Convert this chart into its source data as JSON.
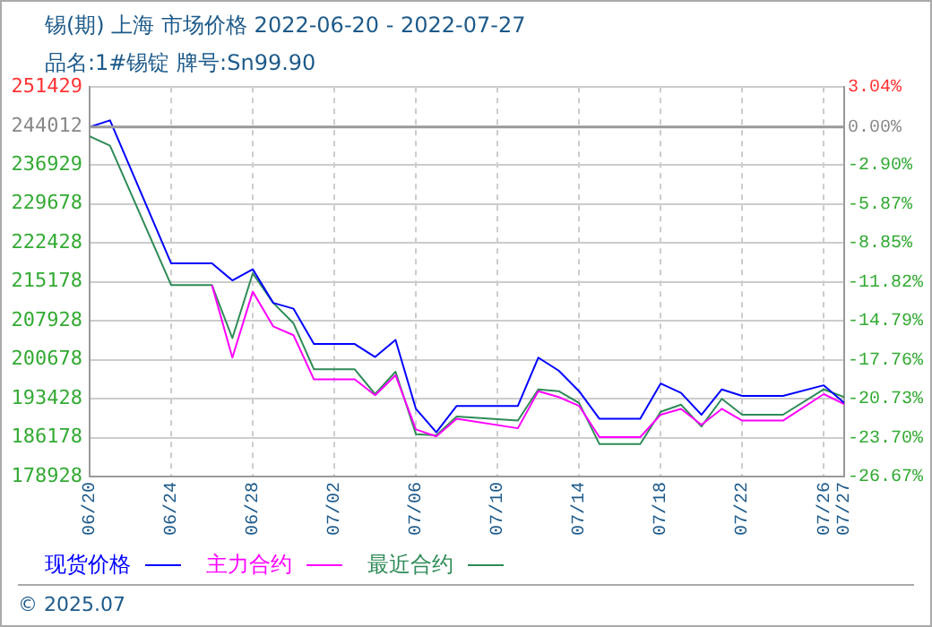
{
  "chart_data": {
    "type": "line",
    "title": "锡(期) 上海 市场价格 2022-06-20 - 2022-07-27",
    "subtitle": "品名:1#锡锭 牌号:Sn99.90",
    "annotations": [
      "© 2025.07"
    ],
    "series": [
      {
        "name": "现货价格",
        "color": "#0000ff",
        "x": [
          "2022-06-20",
          "2022-06-21",
          "2022-06-24",
          "2022-06-26",
          "2022-06-27",
          "2022-06-28",
          "2022-06-29",
          "2022-06-30",
          "2022-07-01",
          "2022-07-03",
          "2022-07-04",
          "2022-07-05",
          "2022-07-06",
          "2022-07-07",
          "2022-07-08",
          "2022-07-11",
          "2022-07-12",
          "2022-07-13",
          "2022-07-14",
          "2022-07-15",
          "2022-07-17",
          "2022-07-18",
          "2022-07-19",
          "2022-07-20",
          "2022-07-21",
          "2022-07-22",
          "2022-07-24",
          "2022-07-26",
          "2022-07-27"
        ],
        "values": [
          244012,
          245230,
          218600,
          218600,
          215430,
          217510,
          211260,
          210170,
          203590,
          203590,
          201180,
          204360,
          191530,
          187150,
          192080,
          192080,
          201060,
          198650,
          194820,
          189670,
          189670,
          196240,
          194490,
          190430,
          195150,
          193940,
          193940,
          195910,
          192630
        ]
      },
      {
        "name": "主力合约",
        "color": "#ff00ff",
        "x": [
          "2022-06-26",
          "2022-06-27",
          "2022-06-28",
          "2022-06-29",
          "2022-06-30",
          "2022-07-01",
          "2022-07-03",
          "2022-07-04",
          "2022-07-05",
          "2022-07-06",
          "2022-07-07",
          "2022-07-08",
          "2022-07-11",
          "2022-07-12",
          "2022-07-13",
          "2022-07-14",
          "2022-07-15",
          "2022-07-17",
          "2022-07-18",
          "2022-07-19",
          "2022-07-20",
          "2022-07-21",
          "2022-07-22",
          "2022-07-24",
          "2022-07-26",
          "2022-07-27"
        ],
        "values": [
          214550,
          201070,
          213340,
          206880,
          205230,
          197010,
          197010,
          194050,
          197780,
          187700,
          186380,
          189670,
          187910,
          194820,
          193720,
          192080,
          186270,
          186270,
          190430,
          191530,
          188570,
          191530,
          189340,
          189340,
          194270,
          192410
        ]
      },
      {
        "name": "最近合约",
        "color": "#2e8b57",
        "x": [
          "2022-06-20",
          "2022-06-21",
          "2022-06-24",
          "2022-06-26",
          "2022-06-27",
          "2022-06-28",
          "2022-06-29",
          "2022-06-30",
          "2022-07-01",
          "2022-07-03",
          "2022-07-04",
          "2022-07-05",
          "2022-07-06",
          "2022-07-07",
          "2022-07-08",
          "2022-07-11",
          "2022-07-12",
          "2022-07-13",
          "2022-07-14",
          "2022-07-15",
          "2022-07-17",
          "2022-07-18",
          "2022-07-19",
          "2022-07-20",
          "2022-07-21",
          "2022-07-22",
          "2022-07-24",
          "2022-07-26",
          "2022-07-27"
        ],
        "values": [
          242280,
          240530,
          214550,
          214550,
          204690,
          216740,
          211260,
          207430,
          198880,
          198880,
          194270,
          198440,
          186820,
          186600,
          190110,
          189340,
          195150,
          194820,
          192630,
          184960,
          184960,
          190980,
          192300,
          188240,
          193390,
          190430,
          190430,
          195150,
          193720
        ]
      }
    ],
    "xlim": [
      "2022-06-20",
      "2022-07-27"
    ],
    "xticks": [
      {
        "value": "2022-06-20",
        "label": "06/20"
      },
      {
        "value": "2022-06-24",
        "label": "06/24"
      },
      {
        "value": "2022-06-28",
        "label": "06/28"
      },
      {
        "value": "2022-07-02",
        "label": "07/02"
      },
      {
        "value": "2022-07-06",
        "label": "07/06"
      },
      {
        "value": "2022-07-10",
        "label": "07/10"
      },
      {
        "value": "2022-07-14",
        "label": "07/14"
      },
      {
        "value": "2022-07-18",
        "label": "07/18"
      },
      {
        "value": "2022-07-22",
        "label": "07/22"
      },
      {
        "value": "2022-07-26",
        "label": "07/26"
      },
      {
        "value": "2022-07-27",
        "label": "07/27"
      }
    ],
    "ylim": [
      178928,
      251429
    ],
    "yticks": [
      178928,
      186178,
      193428,
      200678,
      207928,
      215178,
      222428,
      229678,
      236929,
      244012,
      251429
    ],
    "y2lim": [
      -26.67,
      3.04
    ],
    "y2ticks": [
      {
        "value": -26.67,
        "label": "-26.67%"
      },
      {
        "value": -23.7,
        "label": "-23.70%"
      },
      {
        "value": -20.73,
        "label": "-20.73%"
      },
      {
        "value": -17.76,
        "label": "-17.76%"
      },
      {
        "value": -14.79,
        "label": "-14.79%"
      },
      {
        "value": -11.82,
        "label": "-11.82%"
      },
      {
        "value": -8.85,
        "label": "-8.85%"
      },
      {
        "value": -5.87,
        "label": "-5.87%"
      },
      {
        "value": -2.9,
        "label": "-2.90%"
      },
      {
        "value": 0,
        "label": "0.00%"
      },
      {
        "value": 3.04,
        "label": "3.04%"
      }
    ],
    "ref_lines": [
      {
        "axis": "y",
        "value": 244012,
        "color": "#999999"
      }
    ],
    "grid": true,
    "legend": "bottom",
    "marker": "none",
    "line_style": "solid"
  }
}
